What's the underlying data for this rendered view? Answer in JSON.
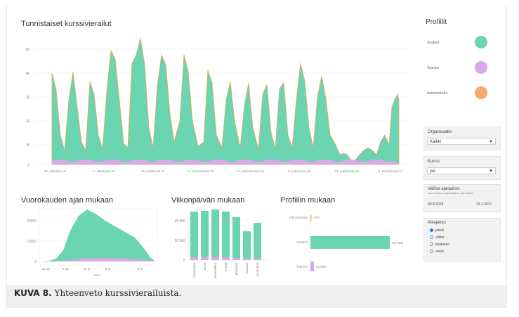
{
  "colors": {
    "student": "#6ad5b0",
    "teacher": "#d9a8e8",
    "administrator": "#f7a96c",
    "line": "#e8a55c"
  },
  "main_chart": {
    "title": "Tunnistaiset kurssivierailut",
    "y_ticks": [
      "5k",
      "4k",
      "3k",
      "2k",
      "1k",
      "0"
    ],
    "x_ticks": [
      "30. elokuuta 16",
      "1. lokakuuta 16",
      "30. lokakuuta 16",
      "1. marraskuuta 16",
      "21. marraskuuta 16",
      "9. joulukuuta 16",
      "21. joulukuuta 16",
      "9. tammikuuta 17"
    ]
  },
  "hourly_chart": {
    "title": "Vuorokauden ajan mukaan",
    "y_ticks": [
      "20000",
      "10000",
      "0"
    ],
    "x_ticks": [
      "12 ap.",
      "6 ap.",
      "12 ip.",
      "6 ip.",
      "6 ip."
    ],
    "xlabel": "Time"
  },
  "weekday_chart": {
    "title": "Viikonpäivän mukaan",
    "y_ticks": [
      "40 000",
      "20 000",
      "0"
    ],
    "days": [
      "maanantai",
      "tiistai",
      "keskiviikko",
      "torstai",
      "perjantai",
      "lauantai",
      "sunnuntai"
    ]
  },
  "profile_chart": {
    "title": "Profiilin mukaan",
    "rows": [
      {
        "label": "Administrator",
        "value_label": "100"
      },
      {
        "label": "Student",
        "value_label": "207 850"
      },
      {
        "label": "Teacher",
        "value_label": "10 000"
      }
    ]
  },
  "sidebar": {
    "profiles_title": "Profiilit",
    "legend": [
      {
        "label": "Student"
      },
      {
        "label": "Teacher"
      },
      {
        "label": "Administrator"
      }
    ],
    "organisation": {
      "label": "Organisaatio",
      "value": "Kaikki"
    },
    "course": {
      "label": "Kurssi",
      "value": "joo"
    },
    "time_range": {
      "label": "Valitse ajanjakso:",
      "hint": "Anna aloitus- ja lopetuspäivä, jolle tilastot",
      "start": "30.8.2016",
      "end": "13.1.2017"
    },
    "time_scale": {
      "label": "Aikajakso",
      "options": [
        {
          "label": "päivä",
          "selected": true
        },
        {
          "label": "viikko",
          "selected": false
        },
        {
          "label": "kuukausi",
          "selected": false
        },
        {
          "label": "vuosi",
          "selected": false
        }
      ]
    }
  },
  "caption": {
    "label": "KUVA 8.",
    "text": "Yhteenveto kurssivierailuista."
  }
}
